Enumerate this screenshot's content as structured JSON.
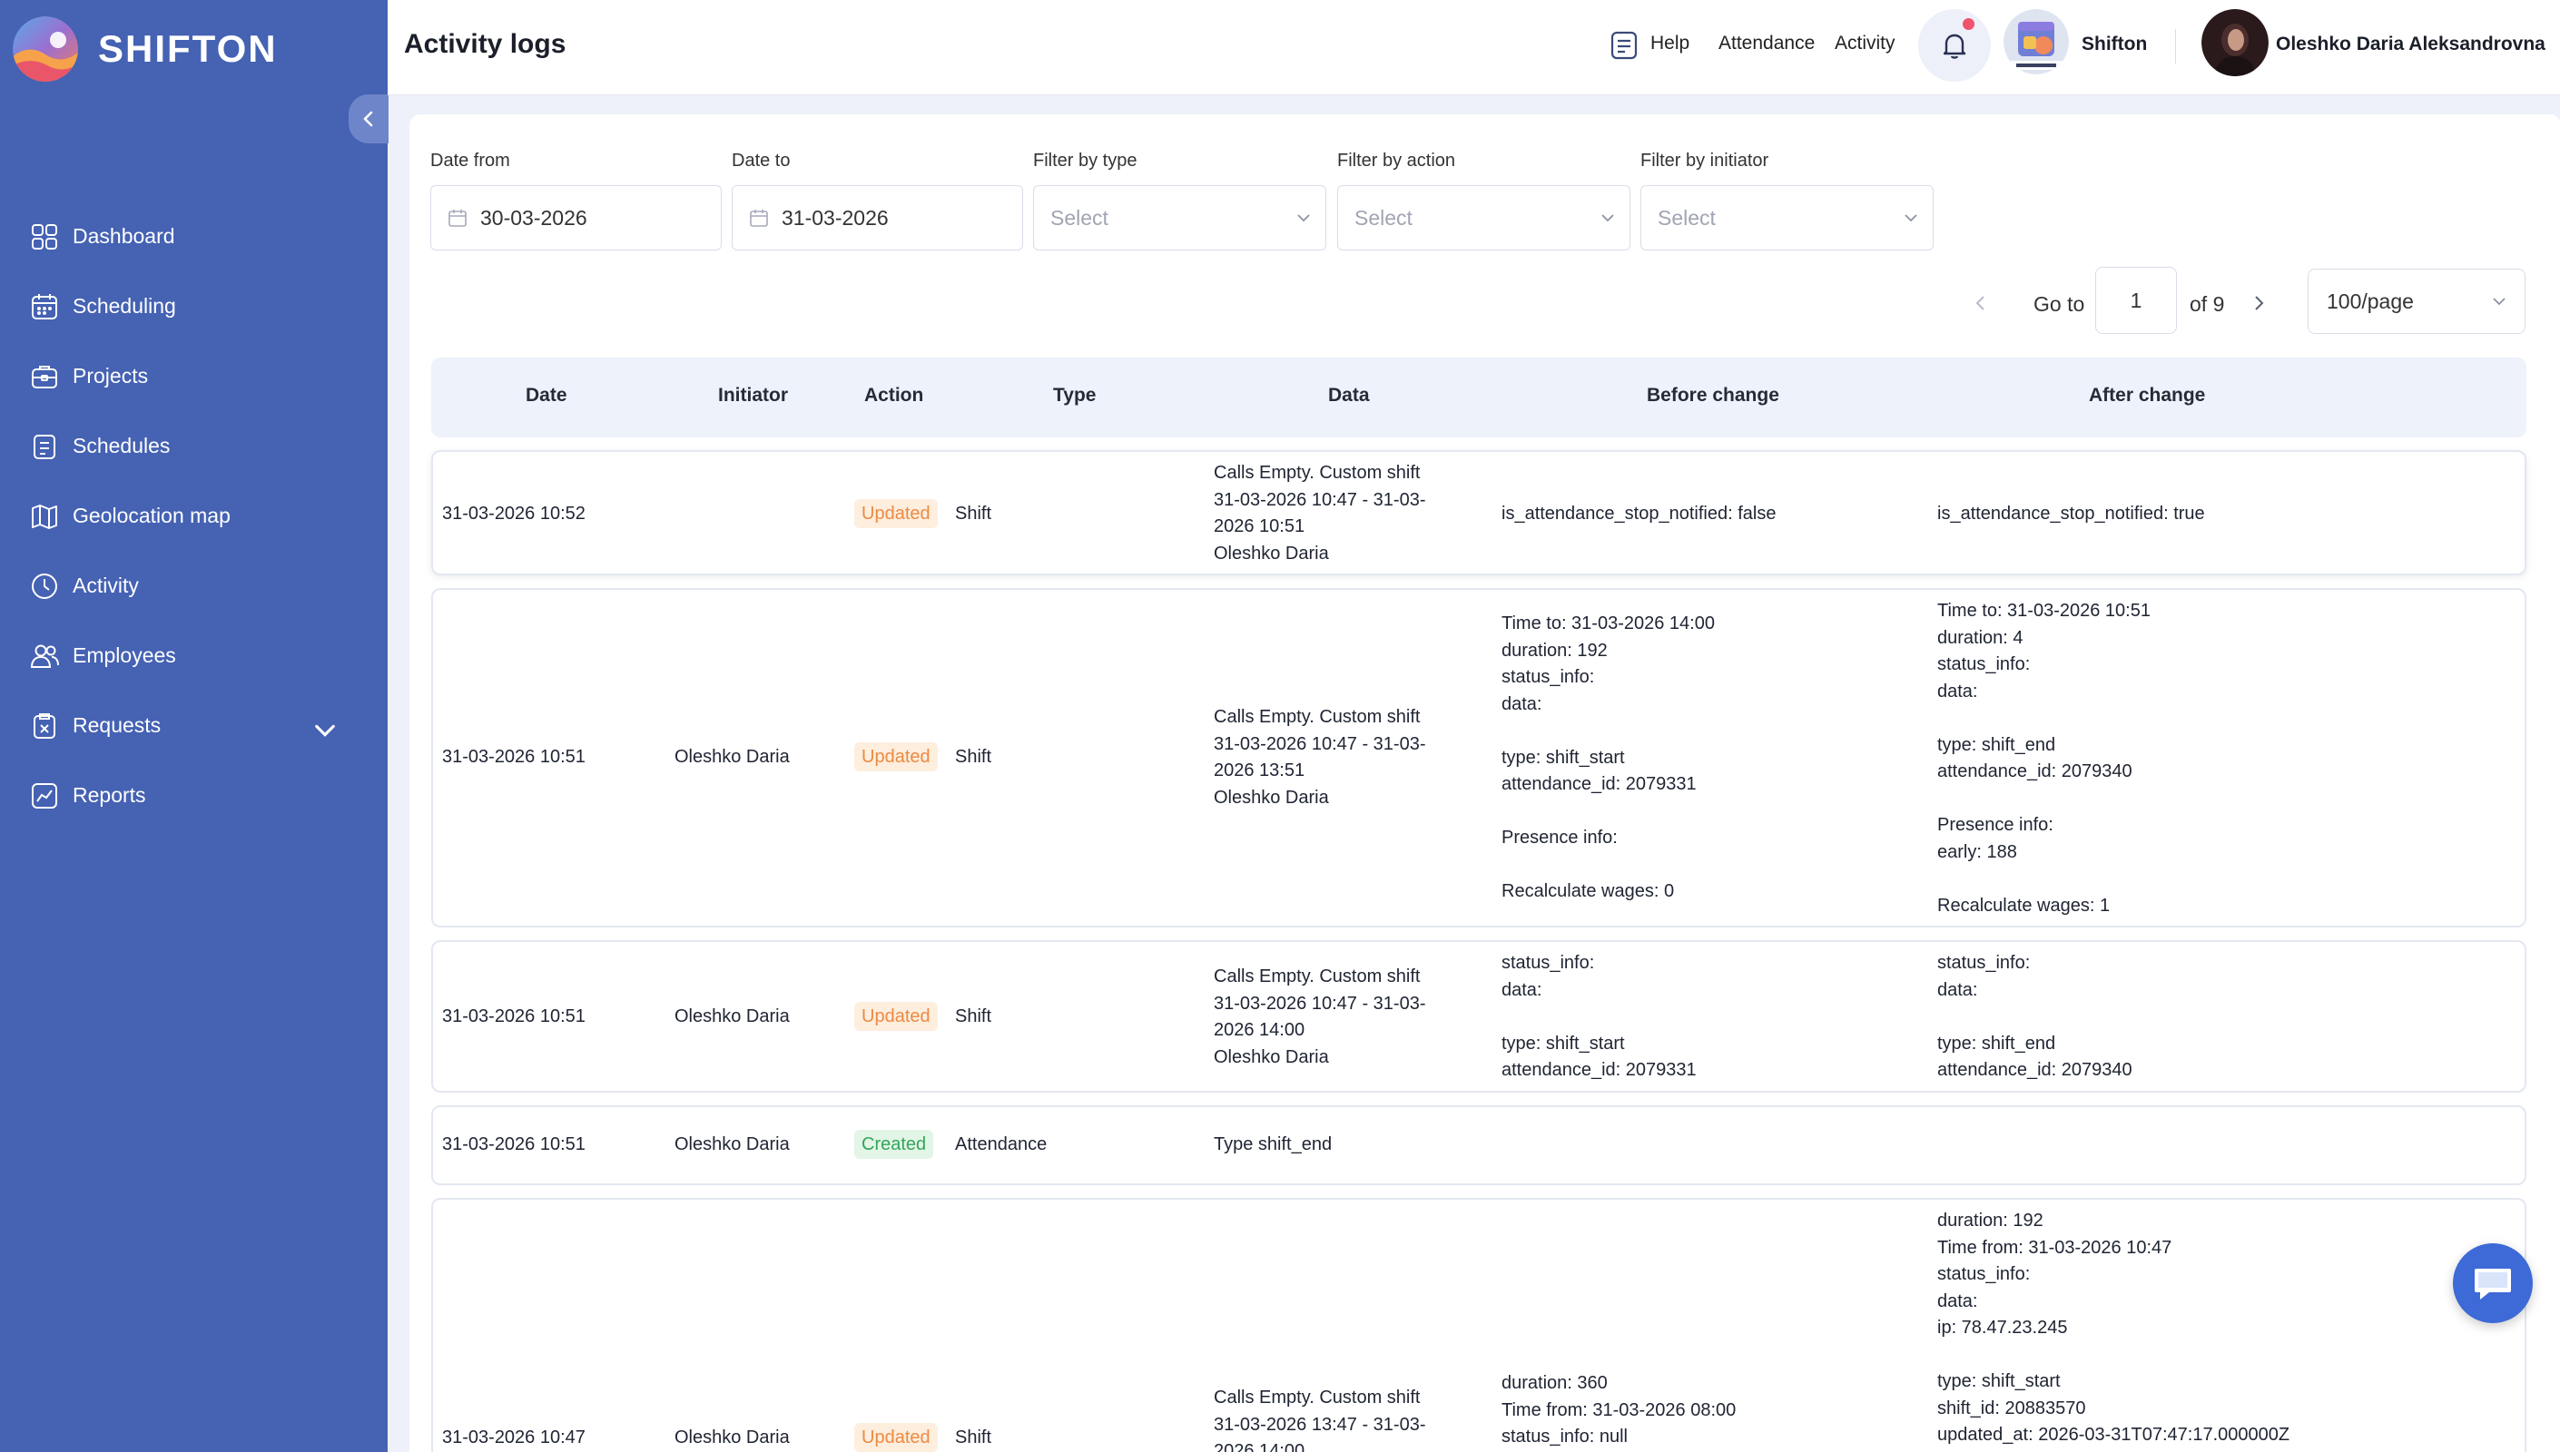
{
  "app": {
    "brand": "SHIFTON",
    "accent": "#4562b3",
    "sidebar_color": "#4562b3"
  },
  "sidebar": {
    "items": [
      {
        "label": "Dashboard",
        "icon": "dashboard-icon"
      },
      {
        "label": "Scheduling",
        "icon": "calendar-icon"
      },
      {
        "label": "Projects",
        "icon": "briefcase-icon"
      },
      {
        "label": "Schedules",
        "icon": "schedule-list-icon"
      },
      {
        "label": "Geolocation map",
        "icon": "map-icon"
      },
      {
        "label": "Activity",
        "icon": "clock-icon"
      },
      {
        "label": "Employees",
        "icon": "users-icon"
      },
      {
        "label": "Requests",
        "icon": "request-icon",
        "expandable": true
      },
      {
        "label": "Reports",
        "icon": "chart-line-icon"
      }
    ]
  },
  "header": {
    "title": "Activity logs",
    "help": "Help",
    "attendance": "Attendance",
    "activity": "Activity",
    "company": "Shifton",
    "user": "Oleshko Daria Aleksandrovna",
    "notification_dot_color": "#f0536c"
  },
  "filters": {
    "date_from_label": "Date from",
    "date_from": "30-03-2026",
    "date_to_label": "Date to",
    "date_to": "31-03-2026",
    "type_label": "Filter by type",
    "type_placeholder": "Select",
    "action_label": "Filter by action",
    "action_placeholder": "Select",
    "initiator_label": "Filter by initiator",
    "initiator_placeholder": "Select"
  },
  "pagination": {
    "goto_label": "Go to",
    "page": "1",
    "of_total": "of 9",
    "per_page": "100/page"
  },
  "table": {
    "columns": [
      "Date",
      "Initiator",
      "Action",
      "Type",
      "Data",
      "Before change",
      "After change"
    ],
    "rows": [
      {
        "date": "31-03-2026 10:52",
        "initiator": "",
        "action": "Updated",
        "type": "Shift",
        "data": "Calls Empty. Custom shift\n31-03-2026 10:47 - 31-03-\n2026 10:51\nOleshko Daria",
        "before": "is_attendance_stop_notified: false",
        "after": "is_attendance_stop_notified: true"
      },
      {
        "date": "31-03-2026 10:51",
        "initiator": "Oleshko Daria",
        "action": "Updated",
        "type": "Shift",
        "data": "Calls Empty. Custom shift\n31-03-2026 10:47 - 31-03-\n2026 13:51\nOleshko Daria",
        "before": "Time to: 31-03-2026 14:00\nduration: 192\nstatus_info:\ndata:\n\ntype: shift_start\nattendance_id: 2079331\n\nPresence info:\n\nRecalculate wages: 0",
        "after": "Time to: 31-03-2026 10:51\nduration: 4\nstatus_info:\ndata:\n\ntype: shift_end\nattendance_id: 2079340\n\nPresence info:\nearly: 188\n\nRecalculate wages: 1"
      },
      {
        "date": "31-03-2026 10:51",
        "initiator": "Oleshko Daria",
        "action": "Updated",
        "type": "Shift",
        "data": "Calls Empty. Custom shift\n31-03-2026 10:47 - 31-03-\n2026 14:00\nOleshko Daria",
        "before": "status_info:\ndata:\n\ntype: shift_start\nattendance_id: 2079331",
        "after": "status_info:\ndata:\n\ntype: shift_end\nattendance_id: 2079340"
      },
      {
        "date": "31-03-2026 10:51",
        "initiator": "Oleshko Daria",
        "action": "Created",
        "type": "Attendance",
        "data": "Type shift_end",
        "before": "",
        "after": ""
      },
      {
        "date": "31-03-2026 10:47",
        "initiator": "Oleshko Daria",
        "action": "Updated",
        "type": "Shift",
        "data": "Calls Empty. Custom shift\n31-03-2026 13:47 - 31-03-\n2026 14:00",
        "before": "duration: 360\nTime from: 31-03-2026 08:00\nstatus_info: null",
        "after": "duration: 192\nTime from: 31-03-2026 10:47\nstatus_info:\ndata:\nip: 78.47.23.245\n\ntype: shift_start\nshift_id: 20883570\nupdated_at: 2026-03-31T07:47:17.000000Z"
      }
    ]
  }
}
